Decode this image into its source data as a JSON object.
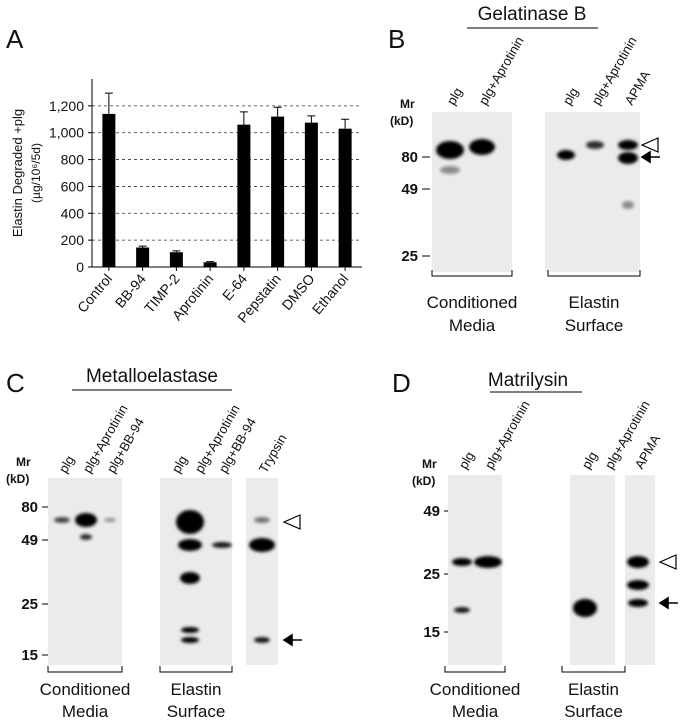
{
  "chart_data": {
    "type": "bar",
    "panel_label": "A",
    "ylabel": "Elastin Degraded +plg",
    "ylabel_unit": "(µg/10⁶/5d)",
    "categories": [
      "Control",
      "BB-94",
      "TIMP-2",
      "Aprotinin",
      "E-64",
      "Pepstatin",
      "DMSO",
      "Ethanol"
    ],
    "values": [
      1140,
      145,
      110,
      35,
      1060,
      1120,
      1075,
      1030
    ],
    "errors": [
      155,
      10,
      10,
      5,
      95,
      70,
      50,
      70
    ],
    "color": "#000000",
    "ylim": [
      0,
      1400
    ],
    "yticks": [
      0,
      200,
      400,
      600,
      800,
      {
        "value": 1000,
        "label": "1,000"
      },
      {
        "value": 1200,
        "label": "1,200"
      }
    ],
    "grid": true
  },
  "panels": [
    {
      "label": "B",
      "title": "Gelatinase B",
      "mr_label": "Mr",
      "unit_label": "(kD)",
      "markers": [
        80,
        49,
        25
      ],
      "lanes": [
        "plg",
        "plg+Aprotinin",
        "plg",
        "plg+Aprotinin",
        "APMA"
      ],
      "groups": [
        [
          "Conditioned",
          "Media"
        ],
        [
          "Elastin",
          "Surface"
        ]
      ]
    },
    {
      "label": "C",
      "title": "Metalloelastase",
      "mr_label": "Mr",
      "unit_label": "(kD)",
      "markers": [
        80,
        49,
        25,
        15
      ],
      "lanes": [
        "plg",
        "plg+Aprotinin",
        "plg+BB-94",
        "plg",
        "plg+Aprotinin",
        "plg+BB-94",
        "Trypsin"
      ],
      "groups": [
        [
          "Conditioned",
          "Media"
        ],
        [
          "Elastin",
          "Surface"
        ]
      ]
    },
    {
      "label": "D",
      "title": "Matrilysin",
      "mr_label": "Mr",
      "unit_label": "(kD)",
      "markers": [
        49,
        25,
        15
      ],
      "lanes": [
        "plg",
        "plg+Aprotinin",
        "plg",
        "plg+Aprotinin",
        "APMA"
      ],
      "groups": [
        [
          "Conditioned",
          "Media"
        ],
        [
          "Elastin",
          "Surface"
        ]
      ]
    }
  ]
}
